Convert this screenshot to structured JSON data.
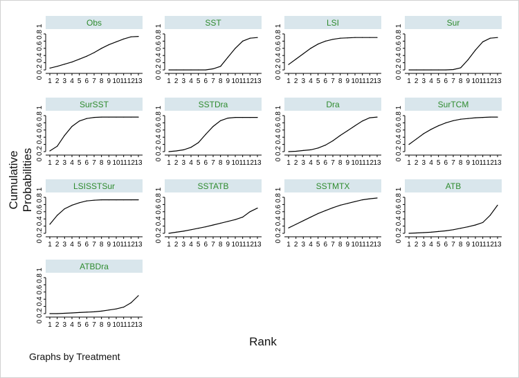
{
  "chart_data": {
    "type": "line",
    "ylabel": "Cumulative Probabilities",
    "xlabel": "Rank",
    "note": "Graphs by Treatment",
    "x": [
      1,
      2,
      3,
      4,
      5,
      6,
      7,
      8,
      9,
      10,
      11,
      12,
      13
    ],
    "xticks": [
      "1",
      "2",
      "3",
      "4",
      "5",
      "6",
      "7",
      "8",
      "9",
      "10",
      "11",
      "12",
      "13"
    ],
    "yticks": [
      "0",
      "0.2",
      "0.4",
      "0.6",
      "0.8",
      "1"
    ],
    "ylim": [
      0,
      1
    ],
    "colors": {
      "title_text": "#2e8b2e",
      "title_strip": "#d9e6ec",
      "line": "#000000"
    },
    "panels": [
      {
        "title": "Obs",
        "values": [
          0.05,
          0.1,
          0.16,
          0.22,
          0.3,
          0.38,
          0.48,
          0.6,
          0.7,
          0.78,
          0.86,
          0.92,
          0.93
        ]
      },
      {
        "title": "SST",
        "values": [
          0,
          0,
          0,
          0,
          0,
          0,
          0.03,
          0.1,
          0.35,
          0.6,
          0.8,
          0.88,
          0.9
        ]
      },
      {
        "title": "LSI",
        "values": [
          0.15,
          0.3,
          0.45,
          0.6,
          0.72,
          0.8,
          0.85,
          0.88,
          0.89,
          0.9,
          0.9,
          0.9,
          0.9
        ]
      },
      {
        "title": "Sur",
        "values": [
          0,
          0,
          0,
          0,
          0,
          0,
          0.01,
          0.06,
          0.28,
          0.55,
          0.78,
          0.88,
          0.9
        ]
      },
      {
        "title": "SurSST",
        "values": [
          0.02,
          0.15,
          0.45,
          0.7,
          0.85,
          0.92,
          0.95,
          0.96,
          0.96,
          0.96,
          0.96,
          0.96,
          0.96
        ]
      },
      {
        "title": "SSTDra",
        "values": [
          0,
          0.02,
          0.05,
          0.12,
          0.25,
          0.48,
          0.7,
          0.86,
          0.93,
          0.95,
          0.95,
          0.95,
          0.95
        ]
      },
      {
        "title": "Dra",
        "values": [
          0,
          0.01,
          0.03,
          0.05,
          0.1,
          0.18,
          0.3,
          0.45,
          0.58,
          0.72,
          0.85,
          0.94,
          0.96
        ]
      },
      {
        "title": "SurTCM",
        "values": [
          0.2,
          0.35,
          0.5,
          0.62,
          0.72,
          0.8,
          0.86,
          0.9,
          0.92,
          0.94,
          0.95,
          0.96,
          0.96
        ]
      },
      {
        "title": "LSISSTSur",
        "values": [
          0.25,
          0.5,
          0.68,
          0.78,
          0.85,
          0.9,
          0.92,
          0.93,
          0.93,
          0.93,
          0.93,
          0.93,
          0.93
        ]
      },
      {
        "title": "SSTATB",
        "values": [
          0,
          0.03,
          0.06,
          0.1,
          0.14,
          0.18,
          0.23,
          0.28,
          0.33,
          0.38,
          0.45,
          0.6,
          0.7
        ]
      },
      {
        "title": "SSTMTX",
        "values": [
          0.15,
          0.25,
          0.35,
          0.45,
          0.55,
          0.63,
          0.71,
          0.78,
          0.83,
          0.88,
          0.93,
          0.96,
          0.98
        ]
      },
      {
        "title": "ATB",
        "values": [
          0,
          0.01,
          0.02,
          0.03,
          0.05,
          0.07,
          0.1,
          0.14,
          0.18,
          0.23,
          0.3,
          0.5,
          0.78
        ]
      },
      {
        "title": "ATBDra",
        "values": [
          0,
          0,
          0.01,
          0.02,
          0.03,
          0.04,
          0.05,
          0.07,
          0.1,
          0.13,
          0.18,
          0.3,
          0.5
        ]
      }
    ]
  }
}
